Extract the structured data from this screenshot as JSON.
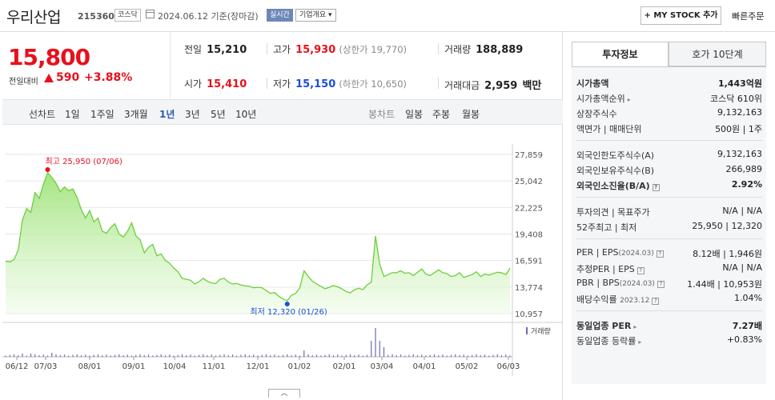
{
  "header": {
    "name": "우리산업",
    "code": "215360",
    "market": "코스닥",
    "date": "2024.06.12",
    "basis": "기준(장마감)",
    "realtime": "실시간",
    "company_info": "기업개요",
    "my_stock": "+ MY STOCK 추가",
    "quick_order": "빠른주문"
  },
  "quote": {
    "price": "15,800",
    "change_label": "전일대비",
    "change_amount": "590",
    "change_percent": "+3.88%",
    "prev_close_label": "전일",
    "prev_close": "15,210",
    "high_label": "고가",
    "high": "15,930",
    "upper_limit": "(상한가 19,770)",
    "volume_label": "거래량",
    "volume": "188,889",
    "open_label": "시가",
    "open": "15,410",
    "low_label": "저가",
    "low": "15,150",
    "lower_limit": "(하한가 10,650)",
    "trade_value_label": "거래대금",
    "trade_value": "2,959",
    "trade_value_unit": "백만"
  },
  "chart_tabs": {
    "line_label": "선차트",
    "periods": [
      "1일",
      "1주일",
      "3개월",
      "1년",
      "3년",
      "5년",
      "10년"
    ],
    "active_period": "1년",
    "candle_label": "봉차트",
    "candles": [
      "일봉",
      "주봉",
      "월봉"
    ]
  },
  "chart_data": {
    "type": "area",
    "y_ticks": [
      "27,859",
      "25,042",
      "22,225",
      "19,408",
      "16,591",
      "13,774",
      "10,957"
    ],
    "ylim": [
      10957,
      27859
    ],
    "x_ticks": [
      "06/12",
      "07/03",
      "08/01",
      "09/01",
      "10/04",
      "11/01",
      "12/01",
      "01/02",
      "02/01",
      "03/04",
      "04/01",
      "05/02",
      "06/03"
    ],
    "high_annotation": "최고 25,950 (07/06)",
    "low_annotation": "최저 12,320 (01/26)",
    "volume_legend": "거래량",
    "series": [
      {
        "values": [
          16500,
          16450,
          16700,
          17700,
          20900,
          22100,
          21700,
          23800,
          23200,
          24700,
          25950,
          25400,
          24800,
          23900,
          24400,
          24000,
          24200,
          23300,
          22000,
          21100,
          21900,
          20700,
          21100,
          19700,
          19500,
          20100,
          20500,
          19400,
          19100,
          19700,
          20600,
          19200,
          18800,
          17400,
          18000,
          18300,
          17100,
          17300,
          16600,
          16300,
          15800,
          15400,
          14700,
          14600,
          14500,
          14100,
          14350,
          14700,
          14400,
          14200,
          14150,
          14600,
          14700,
          14300,
          14100,
          14150,
          14000,
          13900,
          13850,
          13700,
          13750,
          13700,
          13400,
          13100,
          13200,
          12800,
          12500,
          12320,
          12900,
          13100,
          13700,
          15500,
          14900,
          14400,
          14100,
          13850,
          13600,
          13750,
          13950,
          13800,
          13600,
          13300,
          13150,
          13500,
          13650,
          13500,
          14000,
          14300,
          19200,
          16200,
          14900,
          15100,
          15300,
          15300,
          15500,
          15250,
          15300,
          15000,
          15350,
          15700,
          15150,
          15000,
          15300,
          15600,
          15300,
          15200,
          14900,
          15000,
          15300,
          14800,
          14950,
          15100,
          15400,
          14900,
          15150,
          15050,
          15200,
          15350,
          15300,
          15100,
          15800
        ]
      }
    ]
  },
  "invest": {
    "tab_active": "투자정보",
    "tab_inactive": "호가 10단계",
    "rows": [
      {
        "k": "시가총액",
        "v": "1,443억원"
      },
      {
        "k": "시가총액순위",
        "v": "코스닥 610위"
      },
      {
        "k": "상장주식수",
        "v": "9,132,163"
      },
      {
        "k": "액면가 | 매매단위",
        "v": "500원 | 1주"
      },
      {
        "k": "외국인한도주식수(A)",
        "v": "9,132,163"
      },
      {
        "k": "외국인보유주식수(B)",
        "v": "266,989"
      },
      {
        "k": "외국인소진율(B/A)",
        "v": "2.92%"
      },
      {
        "k": "투자의견 | 목표주가",
        "v": "N/A | N/A"
      },
      {
        "k": "52주최고 | 최저",
        "v": "25,950 | 12,320"
      },
      {
        "k": "PER | EPS",
        "k_sub": "(2024.03)",
        "v": "8.12배 | 1,946원"
      },
      {
        "k": "추정PER | EPS",
        "v": "N/A | N/A"
      },
      {
        "k": "PBR | BPS",
        "k_sub": "(2024.03)",
        "v": "1.44배 | 10,953원"
      },
      {
        "k": "배당수익률",
        "k_sub": "2023.12",
        "v": "1.04%"
      },
      {
        "k": "동일업종 PER",
        "v": "7.27배"
      },
      {
        "k": "동일업종 등락률",
        "v": "+0.83%"
      }
    ]
  }
}
